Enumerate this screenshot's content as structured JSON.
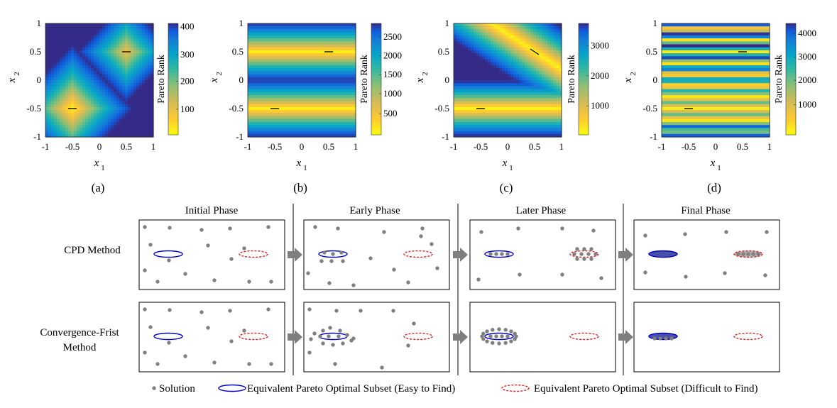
{
  "heatmaps": {
    "panels": [
      {
        "caption": "(a)",
        "colorbar_label": "Pareto Rank",
        "colorbar_ticks": [
          "400",
          "300",
          "200",
          "100"
        ],
        "x_ticks": [
          "-1",
          "-0.5",
          "0",
          "0.5",
          "1"
        ],
        "y_ticks": [
          "1",
          "0.5",
          "0",
          "-0.5",
          "-1"
        ],
        "x_label": "x",
        "x_label_sub": "1",
        "y_label": "x",
        "y_label_sub": "2"
      },
      {
        "caption": "(b)",
        "colorbar_label": "Pareto Rank",
        "colorbar_ticks": [
          "2500",
          "2000",
          "1500",
          "1000",
          "500"
        ],
        "x_ticks": [
          "-1",
          "-0.5",
          "0",
          "0.5",
          "1"
        ],
        "y_ticks": [
          "1",
          "0.5",
          "0",
          "-0.5",
          "-1"
        ],
        "x_label": "x",
        "x_label_sub": "1",
        "y_label": "x",
        "y_label_sub": "2"
      },
      {
        "caption": "(c)",
        "colorbar_label": "Pareto Rank",
        "colorbar_ticks": [
          "3000",
          "2000",
          "1000"
        ],
        "x_ticks": [
          "-1",
          "-0.5",
          "0",
          "0.5",
          "1"
        ],
        "y_ticks": [
          "1",
          "0.5",
          "0",
          "-0.5",
          "-1"
        ],
        "x_label": "x",
        "x_label_sub": "1",
        "y_label": "x",
        "y_label_sub": "2"
      },
      {
        "caption": "(d)",
        "colorbar_label": "Pareto Rank",
        "colorbar_ticks": [
          "4000",
          "3000",
          "2000",
          "1000"
        ],
        "x_ticks": [
          "-1",
          "-0.5",
          "0",
          "0.5",
          "1"
        ],
        "y_ticks": [
          "1",
          "0.5",
          "0",
          "-0.5",
          "-1"
        ],
        "x_label": "x",
        "x_label_sub": "1",
        "y_label": "x",
        "y_label_sub": "2"
      }
    ],
    "colormap": [
      "#352a87",
      "#0f5cdd",
      "#1481d6",
      "#06a4ca",
      "#2eb7a4",
      "#87bf77",
      "#d1bb59",
      "#fec832",
      "#f9fb0e"
    ]
  },
  "diagram": {
    "phase_titles": [
      "Initial Phase",
      "Early Phase",
      "Later Phase",
      "Final Phase"
    ],
    "row_labels": [
      [
        "CPD Method"
      ],
      [
        "Convergence-Frist",
        "Method"
      ]
    ],
    "easy_subset_color": "#0000cc",
    "difficult_subset_color": "#e02020",
    "solution_color": "#808080",
    "arrow_color": "#7f7f7f"
  },
  "legend": {
    "solution": "Solution",
    "easy": "Equivalent Pareto Optimal Subset (Easy to Find)",
    "difficult": "Equivalent Pareto Optimal Subset (Difficult to Find)"
  }
}
